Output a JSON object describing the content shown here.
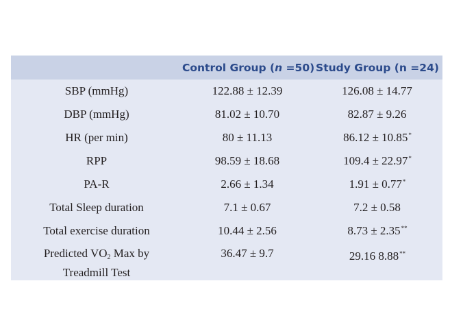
{
  "table": {
    "headers": {
      "col1": "",
      "col2_prefix": "Control Group (",
      "col2_n": "n",
      "col2_suffix": " =50)",
      "col3": "Study Group (n =24)"
    },
    "rows": [
      {
        "label": "SBP (mmHg)",
        "control": "122.88 ± 12.39",
        "study": "126.08 ± 14.77",
        "mark": ""
      },
      {
        "label": "DBP (mmHg)",
        "control": "81.02 ± 10.70",
        "study": "82.87 ± 9.26",
        "mark": ""
      },
      {
        "label": "HR (per min)",
        "control": "80 ± 11.13",
        "study": "86.12 ± 10.85",
        "mark": "*"
      },
      {
        "label": "RPP",
        "control": "98.59 ± 18.68",
        "study": "109.4 ± 22.97",
        "mark": "*"
      },
      {
        "label": "PA-R",
        "control": "2.66 ± 1.34",
        "study": "1.91 ± 0.77",
        "mark": "*"
      },
      {
        "label": "Total Sleep duration",
        "control": "7.1 ± 0.67",
        "study": "7.2 ± 0.58",
        "mark": ""
      },
      {
        "label": "Total exercise duration",
        "control": "10.44 ± 2.56",
        "study": "8.73 ± 2.35",
        "mark": "**"
      }
    ],
    "last_row": {
      "label_pre": "Predicted VO",
      "label_sub": "2",
      "label_post": " Max by",
      "label_line2": "Treadmill Test",
      "control": "36.47 ± 9.7",
      "study": "29.16 8.88",
      "mark": "**"
    }
  }
}
